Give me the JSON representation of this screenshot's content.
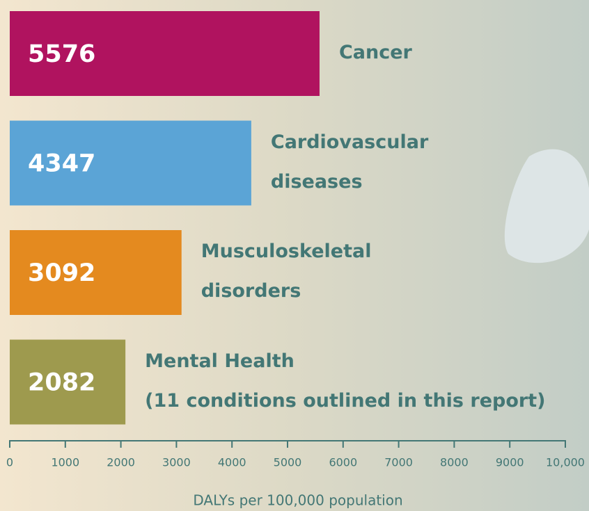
{
  "chart_data": {
    "type": "bar",
    "orientation": "horizontal",
    "categories": [
      "Cancer",
      "Cardiovascular\ndiseases",
      "Musculoskeletal\ndisorders",
      "Mental Health\n(11 conditions outlined in this report)"
    ],
    "series": [
      {
        "name": "DALYs",
        "values": [
          5576,
          4347,
          3092,
          2082
        ],
        "colors": [
          "#b0135f",
          "#5ba4d6",
          "#e48a1f",
          "#9e9a4e"
        ]
      }
    ],
    "xlabel": "DALYs per 100,000 population",
    "xlim": [
      0,
      10000
    ],
    "xticks": [
      0,
      1000,
      2000,
      3000,
      4000,
      5000,
      6000,
      7000,
      8000,
      9000,
      {
        "value": 10000,
        "label": "10,000"
      }
    ]
  }
}
